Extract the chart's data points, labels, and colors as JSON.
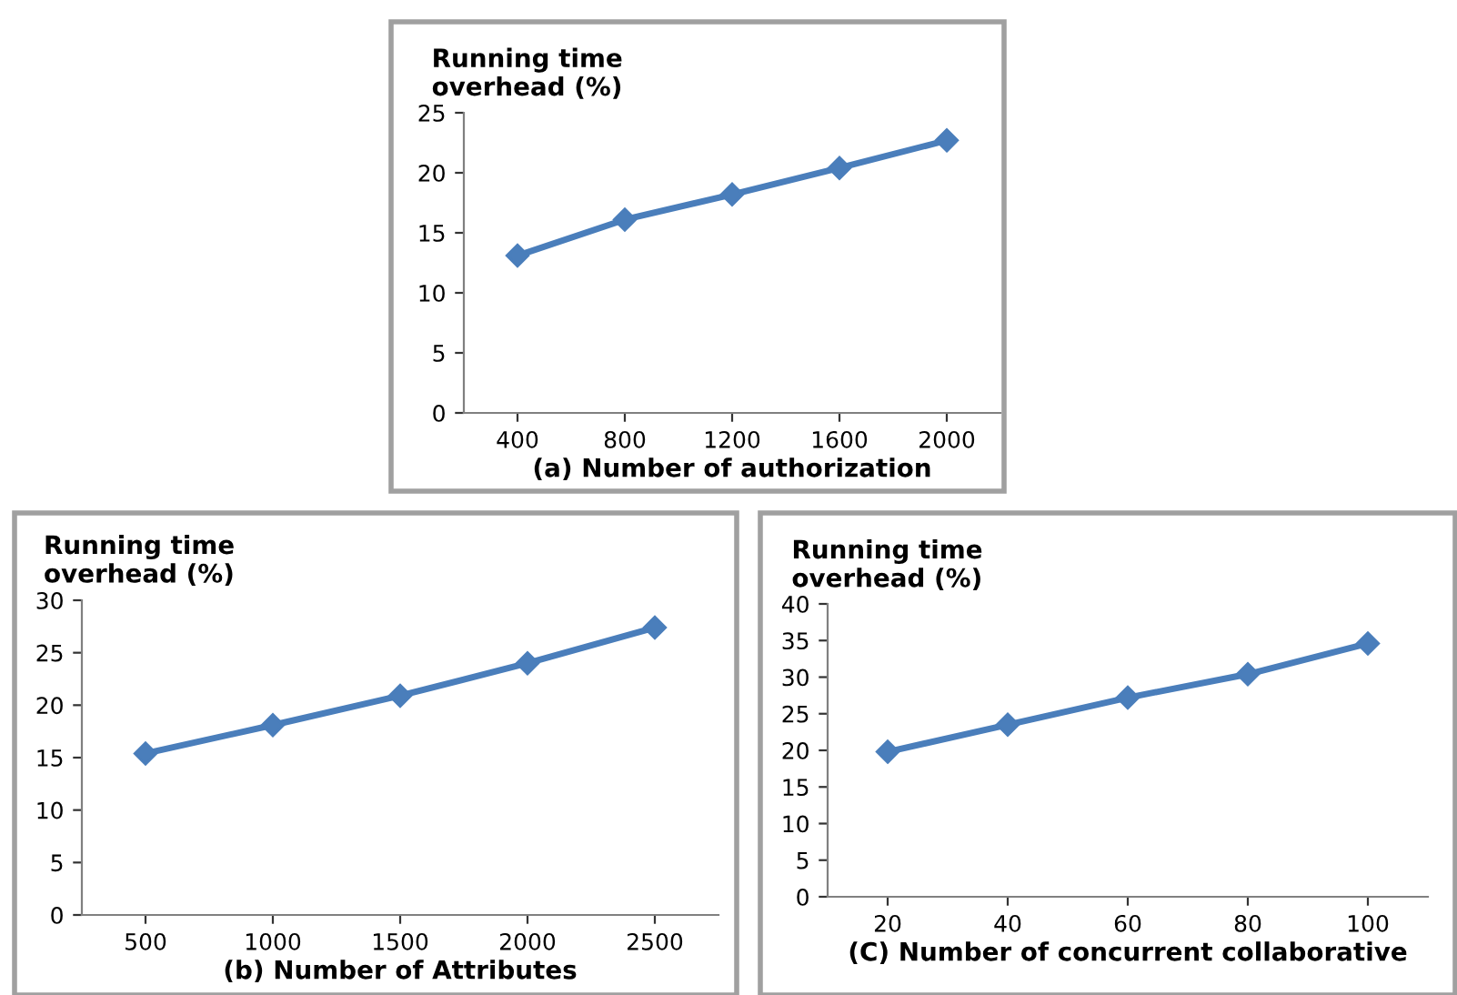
{
  "chart_data": [
    {
      "type": "line",
      "ylabel": "Running time overhead (%)",
      "xlabel": "(a) Number of authorization",
      "categories": [
        "400",
        "800",
        "1200",
        "1600",
        "2000"
      ],
      "series": [
        {
          "color": "#4a7ebb",
          "values": [
            13.1,
            16.1,
            18.2,
            20.4,
            22.7
          ]
        }
      ],
      "ylim": [
        0,
        25
      ],
      "yticks": [
        0,
        5,
        10,
        15,
        20,
        25
      ],
      "grid": false,
      "legend": false,
      "marker": "diamond",
      "line_style": "solid"
    },
    {
      "type": "line",
      "ylabel": "Running time overhead (%)",
      "xlabel": "(b) Number of Attributes",
      "categories": [
        "500",
        "1000",
        "1500",
        "2000",
        "2500"
      ],
      "series": [
        {
          "color": "#4a7ebb",
          "values": [
            15.4,
            18.1,
            20.9,
            24.0,
            27.4
          ]
        }
      ],
      "ylim": [
        0,
        30
      ],
      "yticks": [
        0,
        5,
        10,
        15,
        20,
        25,
        30
      ],
      "grid": false,
      "legend": false,
      "marker": "diamond",
      "line_style": "solid"
    },
    {
      "type": "line",
      "ylabel": "Running time overhead (%)",
      "xlabel": "(C) Number of concurrent collaborative",
      "categories": [
        "20",
        "40",
        "60",
        "80",
        "100"
      ],
      "series": [
        {
          "color": "#4a7ebb",
          "values": [
            19.8,
            23.5,
            27.2,
            30.4,
            34.6
          ]
        }
      ],
      "ylim": [
        0,
        40
      ],
      "yticks": [
        0,
        5,
        10,
        15,
        20,
        25,
        30,
        35,
        40
      ],
      "grid": false,
      "legend": false,
      "marker": "diamond",
      "line_style": "solid"
    }
  ]
}
